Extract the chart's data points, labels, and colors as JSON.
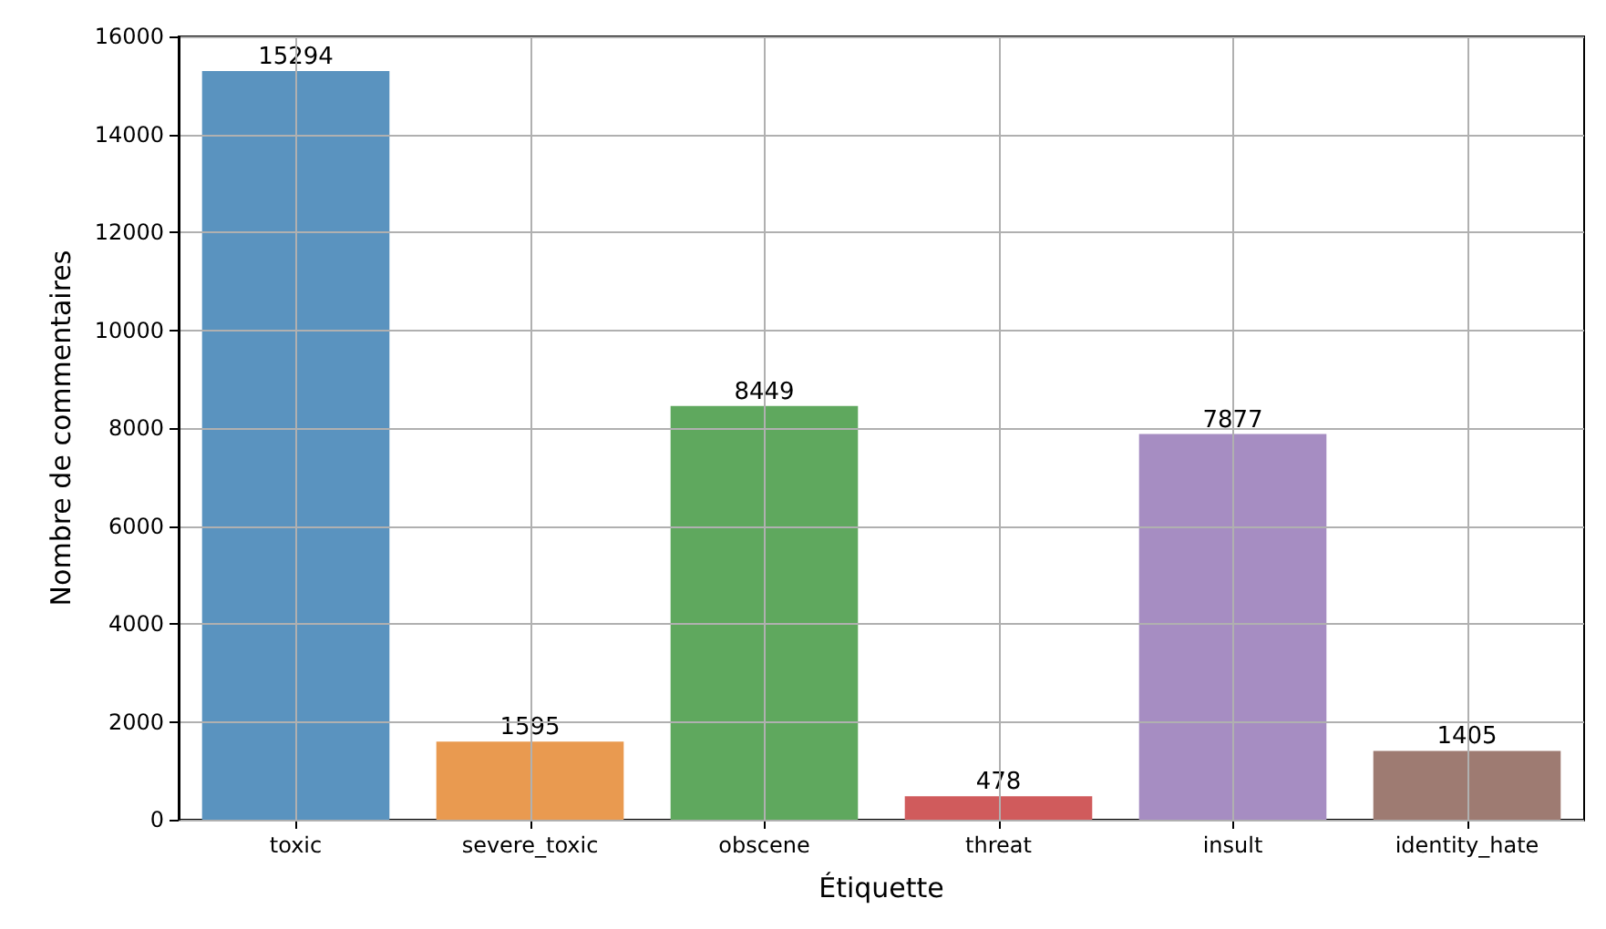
{
  "chart_data": {
    "type": "bar",
    "xlabel": "Étiquette",
    "ylabel": "Nombre de commentaires",
    "categories": [
      "toxic",
      "severe_toxic",
      "obscene",
      "threat",
      "insult",
      "identity_hate"
    ],
    "values": [
      15294,
      1595,
      8449,
      478,
      7877,
      1405
    ],
    "colors": [
      "#5a93bf",
      "#e99a50",
      "#5fa85e",
      "#d05b5c",
      "#a68dc2",
      "#9e7b72"
    ],
    "ylim": [
      0,
      16000
    ],
    "yticks": [
      0,
      2000,
      4000,
      6000,
      8000,
      10000,
      12000,
      14000,
      16000
    ],
    "grid": true,
    "data_labels": true
  }
}
